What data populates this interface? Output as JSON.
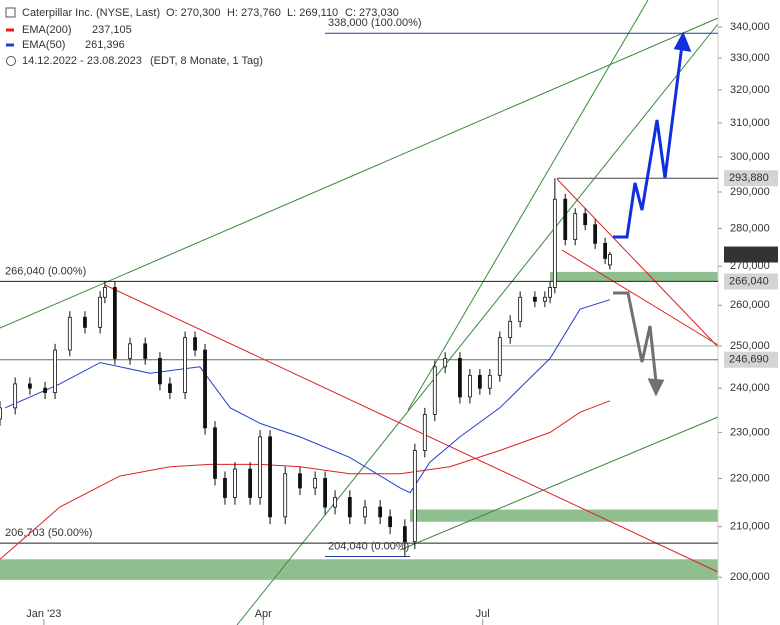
{
  "chart_data": {
    "type": "candlestick",
    "title": "Caterpillar Inc. (NYSE, Last)",
    "quote": [
      "O: 270,300",
      "H: 273,760",
      "L: 269,110",
      "C: 273,030"
    ],
    "date_range": "14.12.2022 - 23.08.2023",
    "details": "(EDT, 8 Monate, 1 Tag)",
    "xlim": [
      0,
      180
    ],
    "xticks": [
      {
        "value": 11,
        "label": "Jan '23"
      },
      {
        "value": 66,
        "label": "Apr"
      },
      {
        "value": 121,
        "label": "Jul"
      }
    ],
    "ylim": [
      191000,
      349000
    ],
    "log_scale": true,
    "yticks": [
      {
        "value": 200000,
        "label": "200,000"
      },
      {
        "value": 210000,
        "label": "210,000"
      },
      {
        "value": 220000,
        "label": "220,000"
      },
      {
        "value": 230000,
        "label": "230,000"
      },
      {
        "value": 240000,
        "label": "240,000"
      },
      {
        "value": 250000,
        "label": "250,000"
      },
      {
        "value": 260000,
        "label": "260,000"
      },
      {
        "value": 270000,
        "label": "270,000"
      },
      {
        "value": 280000,
        "label": "280,000"
      },
      {
        "value": 290000,
        "label": "290,000"
      },
      {
        "value": 300000,
        "label": "300,000"
      },
      {
        "value": 310000,
        "label": "310,000"
      },
      {
        "value": 320000,
        "label": "320,000"
      },
      {
        "value": 330000,
        "label": "330,000"
      },
      {
        "value": 340000,
        "label": "340,000"
      }
    ],
    "x": [
      0,
      3.8,
      7.5,
      11.3,
      13.8,
      17.5,
      21.3,
      25.1,
      26.3,
      28.8,
      32.6,
      36.4,
      40.1,
      42.6,
      46.4,
      48.9,
      51.4,
      53.9,
      56.4,
      58.9,
      62.7,
      65.2,
      67.7,
      71.5,
      75.2,
      79,
      81.5,
      84,
      87.7,
      91.5,
      95.3,
      97.8,
      101.5,
      104,
      106.5,
      109,
      111.6,
      115.3,
      117.8,
      120.3,
      122.8,
      125.3,
      127.9,
      130.4,
      134.1,
      136.6,
      137.9,
      139.1,
      141.7,
      144.2,
      146.7,
      149.2,
      151.7,
      152.9
    ],
    "open": [
      233000,
      235500,
      241000,
      240000,
      239000,
      249000,
      257000,
      254500,
      262000,
      264500,
      247000,
      250500,
      247000,
      241000,
      239000,
      252000,
      249000,
      231000,
      220000,
      216000,
      222000,
      216000,
      229000,
      212000,
      221000,
      218000,
      220000,
      214000,
      216000,
      212000,
      214000,
      212000,
      210000,
      207000,
      226000,
      234000,
      245000,
      247000,
      238000,
      243000,
      240000,
      243000,
      252000,
      256000,
      262000,
      261000,
      262000,
      264500,
      288000,
      277000,
      284000,
      281000,
      276000,
      270300
    ],
    "high": [
      237000,
      242500,
      242500,
      241500,
      250500,
      258500,
      258500,
      263500,
      266040,
      266000,
      252000,
      252000,
      248500,
      242500,
      253500,
      253500,
      250500,
      232500,
      221500,
      223500,
      223500,
      230500,
      230500,
      222500,
      222500,
      221500,
      221500,
      217500,
      217500,
      215500,
      215500,
      213500,
      211500,
      227500,
      235500,
      246500,
      248500,
      248500,
      244500,
      244500,
      244500,
      253500,
      257500,
      263500,
      263500,
      263500,
      266000,
      293880,
      289500,
      285500,
      285500,
      282500,
      277500,
      273760
    ],
    "low": [
      231500,
      234000,
      238500,
      237500,
      237500,
      247500,
      253000,
      253000,
      260500,
      245500,
      245500,
      245500,
      239500,
      237500,
      237500,
      247500,
      229500,
      218500,
      214500,
      214500,
      214500,
      214500,
      210500,
      210500,
      216500,
      216500,
      212500,
      212500,
      210500,
      210500,
      210500,
      208500,
      204040,
      205500,
      224500,
      232500,
      243500,
      236500,
      236500,
      238500,
      238500,
      241500,
      250500,
      254500,
      259500,
      259500,
      260500,
      263000,
      275500,
      275500,
      279500,
      274500,
      270500,
      269110
    ],
    "close": [
      235500,
      241000,
      240000,
      239000,
      249000,
      257000,
      254500,
      262000,
      264500,
      247000,
      250500,
      247000,
      241000,
      239000,
      252000,
      249000,
      231000,
      220000,
      216000,
      222000,
      216000,
      229000,
      212000,
      221000,
      218000,
      220000,
      214000,
      216000,
      212000,
      214000,
      212000,
      210000,
      207000,
      226000,
      234000,
      245000,
      247000,
      238000,
      243000,
      240000,
      243000,
      252000,
      256000,
      262000,
      261000,
      262000,
      264500,
      288000,
      277000,
      284000,
      281000,
      276000,
      272000,
      273030
    ],
    "series": [
      {
        "name": "EMA(200)",
        "color": "#e02020",
        "last_label": "237,105",
        "x": [
          0,
          15,
          30,
          42.6,
          52.6,
          65.2,
          75.2,
          87.7,
          100.3,
          112.8,
          125.3,
          137.9,
          145.4,
          152.9
        ],
        "values": [
          203500,
          214000,
          220500,
          222500,
          223000,
          223000,
          222500,
          221000,
          221000,
          222500,
          226000,
          230000,
          234500,
          237105
        ]
      },
      {
        "name": "EMA(50)",
        "color": "#1f3fd0",
        "last_label": "261,396",
        "x": [
          1.3,
          15,
          25.1,
          37.6,
          50.1,
          57.7,
          65.2,
          75.2,
          87.7,
          100.3,
          102.8,
          107.8,
          115.3,
          125.3,
          137.9,
          145.4,
          152.9
        ],
        "values": [
          235500,
          241000,
          246000,
          243500,
          245000,
          235500,
          232000,
          229000,
          224500,
          218000,
          217000,
          223500,
          229000,
          235500,
          247000,
          259000,
          261396
        ]
      }
    ],
    "levels": [
      {
        "value": 338000,
        "label": "338,000 (100.00%)",
        "color": "#1f3fae"
      },
      {
        "value": 293880,
        "color": "#444"
      },
      {
        "value": 266040,
        "label": "266,040 (0.00%)",
        "color": "#222"
      },
      {
        "value": 250000,
        "color": "#8cbf8c"
      },
      {
        "value": 246690,
        "color": "#666"
      },
      {
        "value": 206703,
        "label": "206,703 (50.00%)",
        "color": "#222"
      },
      {
        "value": 204040,
        "label": "204,040 (0.00%)",
        "color": "#1f3fae"
      }
    ],
    "zones": [
      {
        "from": 266040,
        "to": 268500,
        "color": "#8fbf8f"
      },
      {
        "from": 211000,
        "to": 213500,
        "color": "#8fbf8f"
      },
      {
        "from": 199500,
        "to": 203500,
        "color": "#8fbf8f"
      }
    ],
    "price_tags": [
      {
        "value": 293880,
        "label": "293,880",
        "color": "#d4d4d4"
      },
      {
        "value": 273030,
        "label": "273,030",
        "color": "#333333"
      },
      {
        "value": 266040,
        "label": "266,040",
        "color": "#d4d4d4"
      },
      {
        "value": 246690,
        "label": "246,690",
        "color": "#d4d4d4"
      }
    ]
  }
}
